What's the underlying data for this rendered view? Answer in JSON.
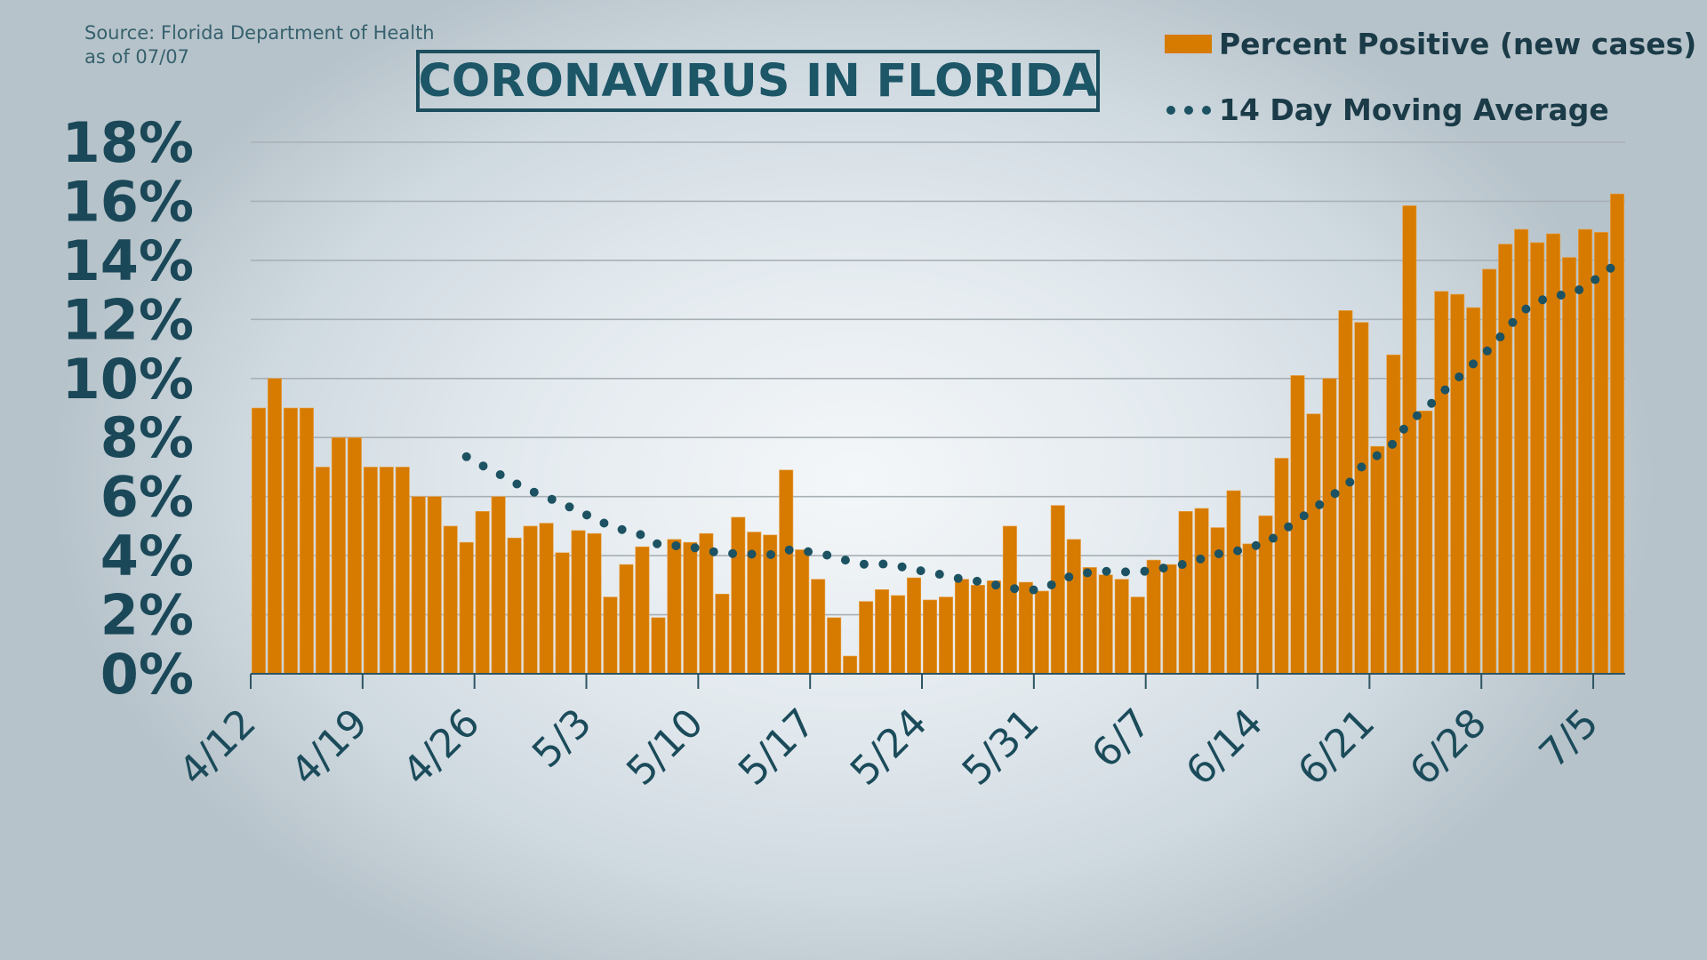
{
  "source": {
    "line1": "Source: Florida Department of Health",
    "line2": "as of 07/07"
  },
  "legend": {
    "bars_label": "Percent Positive (new cases)",
    "line_label": "14 Day Moving Average"
  },
  "colors": {
    "bar": "#d67b00",
    "line": "#1c5262",
    "text": "#1b4858",
    "grid": "#a7b0b5"
  },
  "chart_data": {
    "type": "bar",
    "title": "CORONAVIRUS IN FLORIDA",
    "xlabel": "",
    "ylabel": "",
    "ylim": [
      0,
      18
    ],
    "grid": true,
    "legend_position": "top-right",
    "yticks": [
      "0%",
      "2%",
      "4%",
      "6%",
      "8%",
      "10%",
      "12%",
      "14%",
      "16%",
      "18%"
    ],
    "ytick_values": [
      0,
      2,
      4,
      6,
      8,
      10,
      12,
      14,
      16,
      18
    ],
    "x_start": "4/12",
    "x_end": "7/6",
    "xtick_labels": [
      "4/12",
      "4/19",
      "4/26",
      "5/3",
      "5/10",
      "5/17",
      "5/24",
      "5/31",
      "6/7",
      "6/14",
      "6/21",
      "6/28",
      "7/5"
    ],
    "xtick_day_index": [
      0,
      7,
      14,
      21,
      28,
      35,
      42,
      49,
      56,
      63,
      70,
      77,
      84
    ],
    "series": [
      {
        "name": "Percent Positive (new cases)",
        "type": "bar",
        "start_index": 0,
        "values": [
          9.0,
          10.0,
          9.0,
          9.0,
          7.0,
          8.0,
          8.0,
          7.0,
          7.0,
          7.0,
          6.0,
          6.0,
          5.0,
          4.45,
          5.5,
          6.0,
          4.6,
          5.0,
          5.1,
          4.1,
          4.85,
          4.75,
          2.6,
          3.7,
          4.3,
          1.9,
          4.55,
          4.45,
          4.75,
          2.7,
          5.3,
          4.8,
          4.7,
          6.9,
          4.2,
          3.2,
          1.9,
          0.6,
          2.45,
          2.85,
          2.65,
          3.25,
          2.5,
          2.6,
          3.2,
          3.0,
          3.15,
          5.0,
          3.1,
          2.8,
          5.7,
          4.55,
          3.6,
          3.35,
          3.2,
          2.6,
          3.85,
          3.7,
          5.5,
          5.6,
          4.95,
          6.2,
          4.4,
          5.35,
          7.3,
          10.1,
          8.8,
          10.0,
          12.3,
          11.9,
          7.7,
          10.8,
          15.85,
          8.9,
          12.95,
          12.85,
          12.4,
          13.7,
          14.55,
          15.05,
          14.6,
          14.9,
          14.1,
          15.05,
          14.95,
          16.25
        ]
      },
      {
        "name": "14 Day Moving Average",
        "type": "line",
        "style": "dotted",
        "start_index": 13,
        "values": [
          7.35,
          7.05,
          6.78,
          6.47,
          6.2,
          5.98,
          5.76,
          5.51,
          5.26,
          5.0,
          4.84,
          4.7,
          4.38,
          4.34,
          4.3,
          4.18,
          4.08,
          4.07,
          4.05,
          4.03,
          4.2,
          4.17,
          4.08,
          3.97,
          3.8,
          3.7,
          3.72,
          3.65,
          3.53,
          3.43,
          3.33,
          3.2,
          3.13,
          3.02,
          2.9,
          2.84,
          2.84,
          3.12,
          3.35,
          3.43,
          3.47,
          3.45,
          3.45,
          3.5,
          3.63,
          3.72,
          3.9,
          4.06,
          4.12,
          4.3,
          4.4,
          4.8,
          5.21,
          5.56,
          6.0,
          6.3,
          7.0,
          7.4,
          7.8,
          8.55,
          8.95,
          9.5,
          10.0,
          10.5,
          11.0,
          11.6,
          12.25,
          12.6,
          12.8,
          12.85,
          13.1,
          13.5,
          13.9
        ]
      }
    ]
  }
}
